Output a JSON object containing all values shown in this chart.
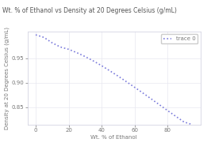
{
  "title": "Wt. % of Ethanol vs Density at 20 Degrees Celsius (g/mL)",
  "xlabel": "Wt. % of Ethanol",
  "ylabel": "Density at 20 Degrees Celsius (g/mL)",
  "legend_label": "trace 0",
  "x_data": [
    0,
    5,
    10,
    15,
    20,
    25,
    30,
    35,
    40,
    45,
    50,
    55,
    60,
    65,
    70,
    75,
    80,
    85,
    90,
    95
  ],
  "y_data": [
    0.9982,
    0.993,
    0.9819,
    0.9733,
    0.9686,
    0.9617,
    0.9538,
    0.9449,
    0.9352,
    0.9247,
    0.9139,
    0.9026,
    0.8911,
    0.8795,
    0.8676,
    0.8556,
    0.8436,
    0.8318,
    0.8201,
    0.815
  ],
  "line_color": "#7b7bdb",
  "line_style": "dotted",
  "line_width": 1.2,
  "xlim": [
    -5,
    100
  ],
  "ylim": [
    0.815,
    1.005
  ],
  "xticks": [
    0,
    20,
    40,
    60,
    80
  ],
  "yticks": [
    0.85,
    0.9,
    0.95
  ],
  "background_color": "#ffffff",
  "plot_bg_color": "#ffffff",
  "grid_color": "#e8e8f0",
  "title_fontsize": 5.5,
  "axis_label_fontsize": 5,
  "tick_fontsize": 5,
  "legend_fontsize": 5
}
